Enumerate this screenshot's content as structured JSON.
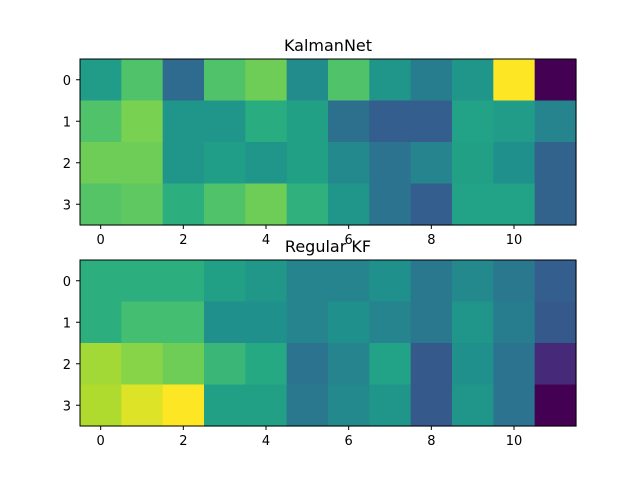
{
  "chart_data": [
    {
      "type": "heatmap",
      "title": "KalmanNet",
      "colormap": "viridis",
      "x_ticks": [
        "0",
        "2",
        "4",
        "6",
        "8",
        "10"
      ],
      "y_ticks": [
        "0",
        "1",
        "2",
        "3"
      ],
      "columns": 12,
      "rows": 4,
      "values": [
        [
          0.55,
          0.72,
          0.35,
          0.72,
          0.78,
          0.48,
          0.72,
          0.52,
          0.42,
          0.52,
          1.0,
          0.0
        ],
        [
          0.72,
          0.8,
          0.52,
          0.52,
          0.62,
          0.57,
          0.37,
          0.3,
          0.3,
          0.58,
          0.55,
          0.45
        ],
        [
          0.78,
          0.78,
          0.52,
          0.56,
          0.52,
          0.57,
          0.47,
          0.38,
          0.45,
          0.57,
          0.5,
          0.32
        ],
        [
          0.73,
          0.75,
          0.63,
          0.72,
          0.78,
          0.64,
          0.52,
          0.38,
          0.3,
          0.58,
          0.58,
          0.32
        ]
      ]
    },
    {
      "type": "heatmap",
      "title": "Regular KF",
      "colormap": "viridis",
      "x_ticks": [
        "0",
        "2",
        "4",
        "6",
        "8",
        "10"
      ],
      "y_ticks": [
        "0",
        "1",
        "2",
        "3"
      ],
      "columns": 12,
      "rows": 4,
      "values": [
        [
          0.63,
          0.63,
          0.63,
          0.57,
          0.53,
          0.45,
          0.45,
          0.5,
          0.4,
          0.47,
          0.4,
          0.3
        ],
        [
          0.63,
          0.7,
          0.7,
          0.5,
          0.5,
          0.45,
          0.5,
          0.45,
          0.4,
          0.52,
          0.42,
          0.28
        ],
        [
          0.86,
          0.82,
          0.78,
          0.67,
          0.61,
          0.38,
          0.45,
          0.58,
          0.28,
          0.5,
          0.38,
          0.12
        ],
        [
          0.88,
          0.95,
          1.0,
          0.57,
          0.57,
          0.4,
          0.47,
          0.52,
          0.28,
          0.52,
          0.38,
          0.0
        ]
      ]
    }
  ]
}
